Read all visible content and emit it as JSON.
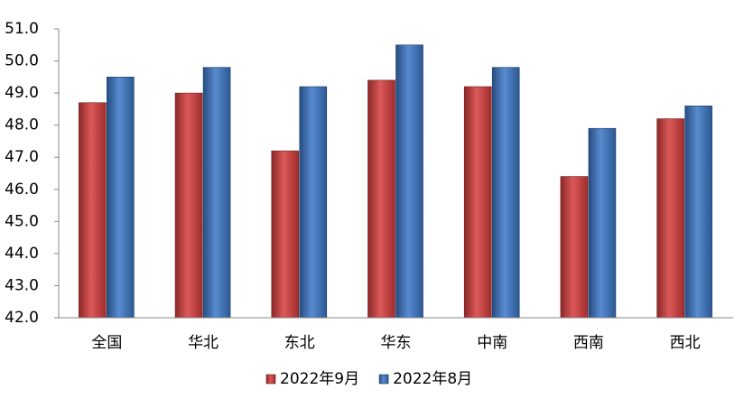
{
  "chart_data": {
    "type": "bar",
    "categories": [
      "全国",
      "华北",
      "东北",
      "华东",
      "中南",
      "西南",
      "西北"
    ],
    "series": [
      {
        "name": "2022年9月",
        "color": "#d63c3c",
        "values": [
          48.7,
          49.0,
          47.2,
          49.4,
          49.2,
          46.4,
          48.2
        ]
      },
      {
        "name": "2022年8月",
        "color": "#3a76c6",
        "values": [
          49.5,
          49.8,
          49.2,
          50.5,
          49.8,
          47.9,
          48.6
        ]
      }
    ],
    "ylim": [
      42,
      51
    ],
    "yticks": [
      {
        "value": 42,
        "label": "42.0"
      },
      {
        "value": 43,
        "label": "43.0"
      },
      {
        "value": 44,
        "label": "44.0"
      },
      {
        "value": 45,
        "label": "45.0"
      },
      {
        "value": 46,
        "label": "46.0"
      },
      {
        "value": 47,
        "label": "47.0"
      },
      {
        "value": 48,
        "label": "48.0"
      },
      {
        "value": 49,
        "label": "49.0"
      },
      {
        "value": 50,
        "label": "50.0"
      },
      {
        "value": 51,
        "label": "51.0"
      }
    ],
    "grid": false,
    "legend": "bottom"
  }
}
